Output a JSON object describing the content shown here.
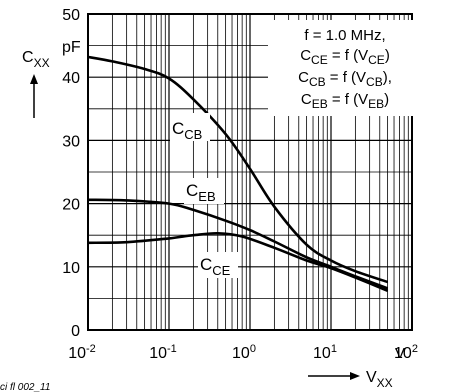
{
  "figure_id": "ci fl 002_11",
  "chart_data": {
    "type": "line",
    "x_scale": "log",
    "xlim": [
      0.01,
      100
    ],
    "ylim": [
      0,
      50
    ],
    "grid": true,
    "y_ticks": [
      0,
      10,
      20,
      30,
      40,
      50
    ],
    "x_ticks": [
      {
        "value": 0.01,
        "base": "10",
        "exp": "-2"
      },
      {
        "value": 0.1,
        "base": "10",
        "exp": "-1"
      },
      {
        "value": 1,
        "base": "10",
        "exp": "0"
      },
      {
        "value": 10,
        "base": "10",
        "exp": "1"
      },
      {
        "value": 100,
        "base": "10",
        "exp": "2"
      }
    ],
    "x_unit_label": "V",
    "xlabel": {
      "main": "V",
      "sub": "XX"
    },
    "ylabel": {
      "main": "C",
      "sub": "XX"
    },
    "y_unit_label": "pF",
    "annotation": {
      "line1": "f = 1.0 MHz,",
      "line2": {
        "a": "C",
        "a_sub": "CE",
        "b": " = f (V",
        "b_sub": "CE",
        "c": ")"
      },
      "line3": {
        "a": "C",
        "a_sub": "CB",
        "b": " = f (V",
        "b_sub": "CB",
        "c": "),",
        "pre": ""
      },
      "line4": {
        "a": "C",
        "a_sub": "EB",
        "b": " = f (V",
        "b_sub": "EB",
        "c": ")",
        "pre": ""
      }
    },
    "series": [
      {
        "name": "CCB",
        "label_main": "C",
        "label_sub": "CB",
        "points": [
          [
            0.01,
            43.2
          ],
          [
            0.02,
            42.5
          ],
          [
            0.05,
            41.3
          ],
          [
            0.1,
            39.8
          ],
          [
            0.2,
            36.5
          ],
          [
            0.5,
            31.0
          ],
          [
            1,
            25.5
          ],
          [
            2,
            19.5
          ],
          [
            5,
            13.5
          ],
          [
            10,
            11.0
          ],
          [
            20,
            9.3
          ],
          [
            50,
            7.6
          ]
        ]
      },
      {
        "name": "CEB",
        "label_main": "C",
        "label_sub": "EB",
        "points": [
          [
            0.01,
            20.6
          ],
          [
            0.03,
            20.5
          ],
          [
            0.1,
            20.0
          ],
          [
            0.2,
            19.0
          ],
          [
            0.5,
            17.3
          ],
          [
            1,
            15.8
          ],
          [
            2,
            14.0
          ],
          [
            5,
            11.5
          ],
          [
            10,
            10.0
          ],
          [
            20,
            8.5
          ],
          [
            50,
            6.6
          ]
        ]
      },
      {
        "name": "CCE",
        "label_main": "C",
        "label_sub": "CE",
        "points": [
          [
            0.01,
            13.8
          ],
          [
            0.03,
            13.9
          ],
          [
            0.1,
            14.5
          ],
          [
            0.2,
            15.0
          ],
          [
            0.4,
            15.3
          ],
          [
            0.8,
            14.8
          ],
          [
            2,
            13.0
          ],
          [
            5,
            11.0
          ],
          [
            10,
            9.8
          ],
          [
            20,
            8.3
          ],
          [
            50,
            6.2
          ]
        ]
      }
    ]
  }
}
